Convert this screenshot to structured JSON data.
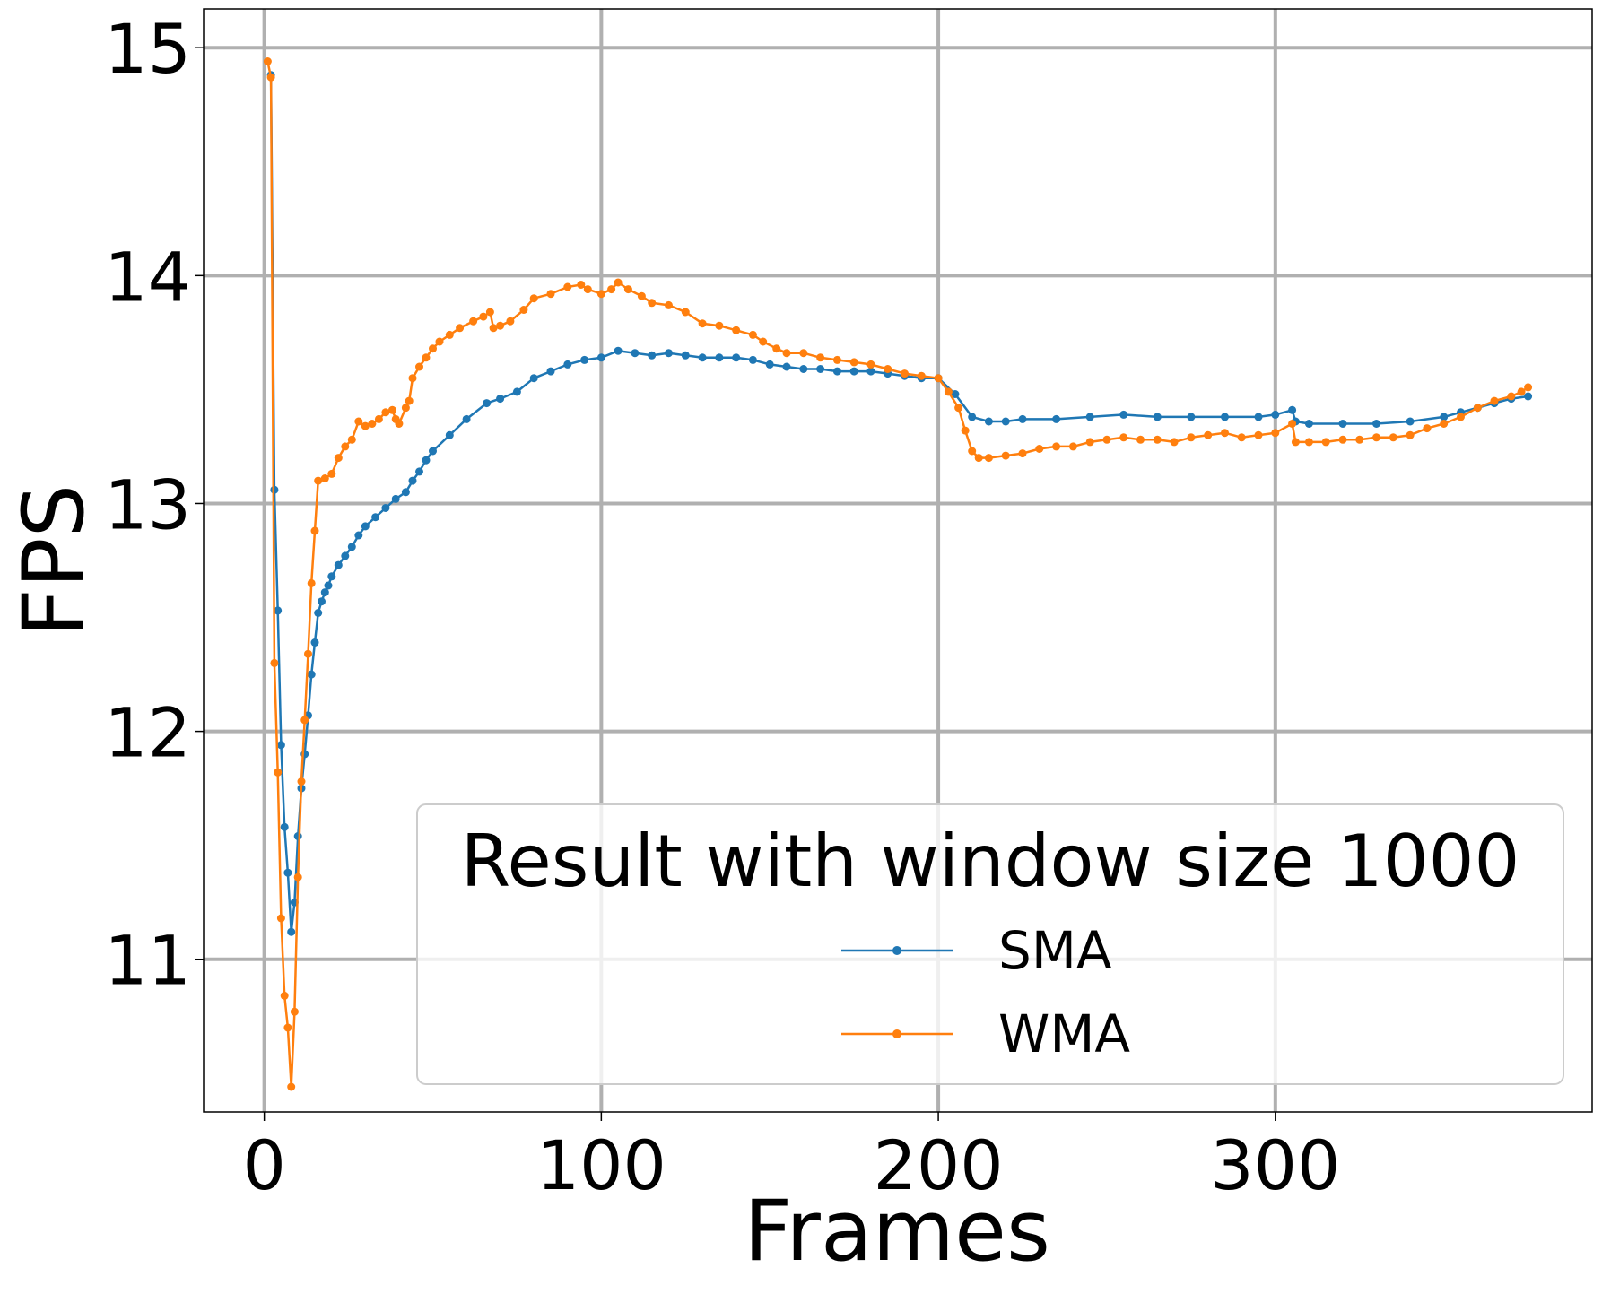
{
  "chart_data": {
    "type": "line",
    "xlabel": "Frames",
    "ylabel": "FPS",
    "xlim": [
      -18,
      394
    ],
    "ylim": [
      10.33,
      15.17
    ],
    "xticks": [
      0,
      100,
      200,
      300
    ],
    "yticks": [
      11,
      12,
      13,
      14,
      15
    ],
    "grid": true,
    "legend": {
      "title": "Result with window size 1000",
      "position": "lower-right"
    },
    "series": [
      {
        "name": "SMA",
        "color": "#1f77b4",
        "points": [
          [
            2,
            14.88
          ],
          [
            3,
            13.06
          ],
          [
            4,
            12.53
          ],
          [
            5,
            11.94
          ],
          [
            6,
            11.58
          ],
          [
            7,
            11.38
          ],
          [
            8,
            11.12
          ],
          [
            9,
            11.25
          ],
          [
            10,
            11.54
          ],
          [
            11,
            11.75
          ],
          [
            12,
            11.9
          ],
          [
            13,
            12.07
          ],
          [
            14,
            12.25
          ],
          [
            15,
            12.39
          ],
          [
            16,
            12.52
          ],
          [
            17,
            12.57
          ],
          [
            18,
            12.61
          ],
          [
            19,
            12.64
          ],
          [
            20,
            12.68
          ],
          [
            22,
            12.73
          ],
          [
            24,
            12.77
          ],
          [
            26,
            12.81
          ],
          [
            28,
            12.86
          ],
          [
            30,
            12.9
          ],
          [
            33,
            12.94
          ],
          [
            36,
            12.98
          ],
          [
            39,
            13.02
          ],
          [
            42,
            13.05
          ],
          [
            44,
            13.1
          ],
          [
            46,
            13.14
          ],
          [
            48,
            13.19
          ],
          [
            50,
            13.23
          ],
          [
            55,
            13.3
          ],
          [
            60,
            13.37
          ],
          [
            66,
            13.44
          ],
          [
            70,
            13.46
          ],
          [
            75,
            13.49
          ],
          [
            80,
            13.55
          ],
          [
            85,
            13.58
          ],
          [
            90,
            13.61
          ],
          [
            95,
            13.63
          ],
          [
            100,
            13.64
          ],
          [
            105,
            13.67
          ],
          [
            110,
            13.66
          ],
          [
            115,
            13.65
          ],
          [
            120,
            13.66
          ],
          [
            125,
            13.65
          ],
          [
            130,
            13.64
          ],
          [
            135,
            13.64
          ],
          [
            140,
            13.64
          ],
          [
            145,
            13.63
          ],
          [
            150,
            13.61
          ],
          [
            155,
            13.6
          ],
          [
            160,
            13.59
          ],
          [
            165,
            13.59
          ],
          [
            170,
            13.58
          ],
          [
            175,
            13.58
          ],
          [
            180,
            13.58
          ],
          [
            185,
            13.57
          ],
          [
            190,
            13.56
          ],
          [
            195,
            13.55
          ],
          [
            200,
            13.55
          ],
          [
            205,
            13.48
          ],
          [
            210,
            13.38
          ],
          [
            215,
            13.36
          ],
          [
            220,
            13.36
          ],
          [
            225,
            13.37
          ],
          [
            235,
            13.37
          ],
          [
            245,
            13.38
          ],
          [
            255,
            13.39
          ],
          [
            265,
            13.38
          ],
          [
            275,
            13.38
          ],
          [
            285,
            13.38
          ],
          [
            295,
            13.38
          ],
          [
            300,
            13.39
          ],
          [
            305,
            13.41
          ],
          [
            306,
            13.36
          ],
          [
            310,
            13.35
          ],
          [
            320,
            13.35
          ],
          [
            330,
            13.35
          ],
          [
            340,
            13.36
          ],
          [
            350,
            13.38
          ],
          [
            355,
            13.4
          ],
          [
            360,
            13.42
          ],
          [
            365,
            13.44
          ],
          [
            370,
            13.46
          ],
          [
            375,
            13.47
          ]
        ]
      },
      {
        "name": "WMA",
        "color": "#ff7f0e",
        "points": [
          [
            1,
            14.94
          ],
          [
            2,
            14.87
          ],
          [
            3,
            12.3
          ],
          [
            4,
            11.82
          ],
          [
            5,
            11.18
          ],
          [
            6,
            10.84
          ],
          [
            7,
            10.7
          ],
          [
            8,
            10.44
          ],
          [
            9,
            10.77
          ],
          [
            10,
            11.36
          ],
          [
            11,
            11.78
          ],
          [
            12,
            12.05
          ],
          [
            13,
            12.34
          ],
          [
            14,
            12.65
          ],
          [
            15,
            12.88
          ],
          [
            16,
            13.1
          ],
          [
            18,
            13.11
          ],
          [
            20,
            13.13
          ],
          [
            22,
            13.2
          ],
          [
            24,
            13.25
          ],
          [
            26,
            13.28
          ],
          [
            28,
            13.36
          ],
          [
            30,
            13.34
          ],
          [
            32,
            13.35
          ],
          [
            34,
            13.37
          ],
          [
            36,
            13.4
          ],
          [
            38,
            13.41
          ],
          [
            39,
            13.37
          ],
          [
            40,
            13.35
          ],
          [
            42,
            13.42
          ],
          [
            43,
            13.45
          ],
          [
            44,
            13.55
          ],
          [
            46,
            13.6
          ],
          [
            48,
            13.64
          ],
          [
            50,
            13.68
          ],
          [
            52,
            13.71
          ],
          [
            55,
            13.74
          ],
          [
            58,
            13.77
          ],
          [
            62,
            13.8
          ],
          [
            65,
            13.82
          ],
          [
            67,
            13.84
          ],
          [
            68,
            13.77
          ],
          [
            70,
            13.78
          ],
          [
            73,
            13.8
          ],
          [
            77,
            13.85
          ],
          [
            80,
            13.9
          ],
          [
            85,
            13.92
          ],
          [
            90,
            13.95
          ],
          [
            94,
            13.96
          ],
          [
            96,
            13.94
          ],
          [
            100,
            13.92
          ],
          [
            103,
            13.94
          ],
          [
            105,
            13.97
          ],
          [
            108,
            13.94
          ],
          [
            112,
            13.91
          ],
          [
            115,
            13.88
          ],
          [
            120,
            13.87
          ],
          [
            125,
            13.84
          ],
          [
            130,
            13.79
          ],
          [
            135,
            13.78
          ],
          [
            140,
            13.76
          ],
          [
            145,
            13.74
          ],
          [
            148,
            13.71
          ],
          [
            152,
            13.68
          ],
          [
            155,
            13.66
          ],
          [
            160,
            13.66
          ],
          [
            165,
            13.64
          ],
          [
            170,
            13.63
          ],
          [
            175,
            13.62
          ],
          [
            180,
            13.61
          ],
          [
            185,
            13.59
          ],
          [
            190,
            13.57
          ],
          [
            195,
            13.56
          ],
          [
            200,
            13.55
          ],
          [
            203,
            13.49
          ],
          [
            206,
            13.42
          ],
          [
            208,
            13.32
          ],
          [
            210,
            13.23
          ],
          [
            212,
            13.2
          ],
          [
            215,
            13.2
          ],
          [
            220,
            13.21
          ],
          [
            225,
            13.22
          ],
          [
            230,
            13.24
          ],
          [
            235,
            13.25
          ],
          [
            240,
            13.25
          ],
          [
            245,
            13.27
          ],
          [
            250,
            13.28
          ],
          [
            255,
            13.29
          ],
          [
            260,
            13.28
          ],
          [
            265,
            13.28
          ],
          [
            270,
            13.27
          ],
          [
            275,
            13.29
          ],
          [
            280,
            13.3
          ],
          [
            285,
            13.31
          ],
          [
            290,
            13.29
          ],
          [
            295,
            13.3
          ],
          [
            300,
            13.31
          ],
          [
            305,
            13.35
          ],
          [
            306,
            13.27
          ],
          [
            310,
            13.27
          ],
          [
            315,
            13.27
          ],
          [
            320,
            13.28
          ],
          [
            325,
            13.28
          ],
          [
            330,
            13.29
          ],
          [
            335,
            13.29
          ],
          [
            340,
            13.3
          ],
          [
            345,
            13.33
          ],
          [
            350,
            13.35
          ],
          [
            355,
            13.38
          ],
          [
            360,
            13.42
          ],
          [
            365,
            13.45
          ],
          [
            370,
            13.47
          ],
          [
            373,
            13.49
          ],
          [
            375,
            13.51
          ]
        ]
      }
    ]
  }
}
